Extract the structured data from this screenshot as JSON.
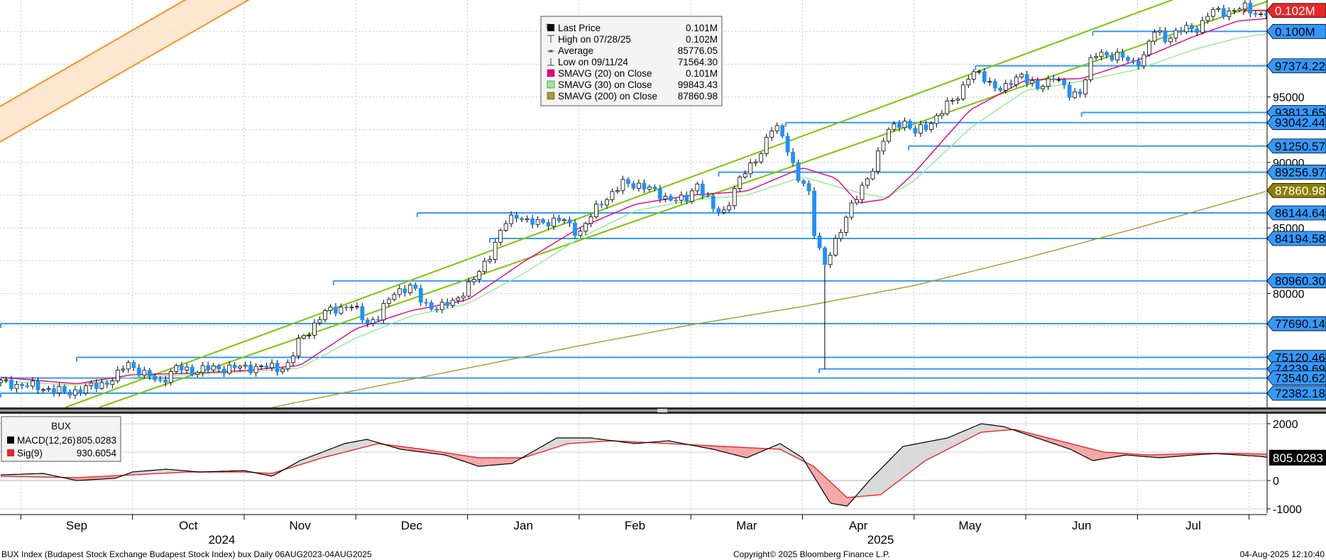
{
  "chart_data": [
    {
      "type": "candlestick",
      "title": "",
      "y_scale": "linear",
      "ylim": [
        71300,
        102400
      ],
      "y_ticks": [
        80000,
        85000,
        90000,
        95000
      ],
      "y_tick_labels": [
        "80000",
        "85000",
        "90000",
        "95000"
      ],
      "x_months": [
        "Sep",
        "Oct",
        "Nov",
        "Dec",
        "Jan",
        "Feb",
        "Mar",
        "Apr",
        "May",
        "Jun",
        "Jul"
      ],
      "x_years": [
        "2024",
        "2025"
      ],
      "grid": true,
      "legend": {
        "placement": "top-center",
        "entries": [
          {
            "label": "Last Price",
            "value": "0.101M",
            "color": "#000000"
          },
          {
            "label": "High on 07/28/25",
            "value": "0.102M",
            "color": "#000000"
          },
          {
            "label": "Average",
            "value": "85776.05",
            "color": "#000000"
          },
          {
            "label": "Low on 09/11/24",
            "value": "71564.30",
            "color": "#000000"
          },
          {
            "label": "SMAVG (20)  on Close",
            "value": "0.101M",
            "color": "#e6007e"
          },
          {
            "label": "SMAVG (30)  on Close",
            "value": "99843.43",
            "color": "#90ee90"
          },
          {
            "label": "SMAVG (200)  on Close",
            "value": "87860.98",
            "color": "#a89a2a"
          }
        ]
      },
      "price_tags": [
        {
          "text": "0.102M",
          "value": 101600,
          "bg": "#e8262a",
          "fg": "#ffffff"
        },
        {
          "text": "0.100M",
          "value": 100000,
          "bg": "#3399ff",
          "fg": "#000000"
        },
        {
          "text": "97374.22",
          "value": 97374.22,
          "bg": "#3399ff",
          "fg": "#000000"
        },
        {
          "text": "93813.65",
          "value": 93813.65,
          "bg": "#3399ff",
          "fg": "#000000"
        },
        {
          "text": "93042.44",
          "value": 93042.44,
          "bg": "#3399ff",
          "fg": "#000000"
        },
        {
          "text": "91250.57",
          "value": 91250.57,
          "bg": "#3399ff",
          "fg": "#000000"
        },
        {
          "text": "89256.97",
          "value": 89256.97,
          "bg": "#3399ff",
          "fg": "#000000"
        },
        {
          "text": "87860.98",
          "value": 87860.98,
          "bg": "#8b8000",
          "fg": "#ffffff"
        },
        {
          "text": "86144.64",
          "value": 86144.64,
          "bg": "#3399ff",
          "fg": "#000000"
        },
        {
          "text": "84194.58",
          "value": 84194.58,
          "bg": "#3399ff",
          "fg": "#000000"
        },
        {
          "text": "80960.30",
          "value": 80960.3,
          "bg": "#3399ff",
          "fg": "#000000"
        },
        {
          "text": "77690.14",
          "value": 77690.14,
          "bg": "#3399ff",
          "fg": "#000000"
        },
        {
          "text": "75120.46",
          "value": 75120.46,
          "bg": "#3399ff",
          "fg": "#000000"
        },
        {
          "text": "74239.69",
          "value": 74239.69,
          "bg": "#3399ff",
          "fg": "#000000"
        },
        {
          "text": "73540.62",
          "value": 73540.62,
          "bg": "#3399ff",
          "fg": "#000000"
        },
        {
          "text": "72382.18",
          "value": 72382.18,
          "bg": "#3399ff",
          "fg": "#000000"
        }
      ],
      "horizontal_levels": [
        {
          "value": 101600,
          "from_month": 10.45,
          "color": "#e8262a"
        },
        {
          "value": 100000,
          "from_month": 9.1,
          "color": "#3399ff"
        },
        {
          "value": 97374.22,
          "from_month": 8.05,
          "color": "#3399ff"
        },
        {
          "value": 93813.65,
          "from_month": 9.0,
          "color": "#3399ff"
        },
        {
          "value": 93042.44,
          "from_month": 6.35,
          "color": "#3399ff"
        },
        {
          "value": 91250.57,
          "from_month": 7.45,
          "color": "#3399ff"
        },
        {
          "value": 89256.97,
          "from_month": 5.75,
          "color": "#3399ff"
        },
        {
          "value": 86144.64,
          "from_month": 3.05,
          "color": "#3399ff"
        },
        {
          "value": 84194.58,
          "from_month": 3.7,
          "color": "#3399ff"
        },
        {
          "value": 80960.3,
          "from_month": 2.3,
          "color": "#3399ff"
        },
        {
          "value": 77690.14,
          "from_month": -0.68,
          "color": "#3399ff"
        },
        {
          "value": 75120.46,
          "from_month": 0.0,
          "color": "#3399ff"
        },
        {
          "value": 74239.69,
          "from_month": 6.65,
          "color": "#3399ff"
        },
        {
          "value": 73540.62,
          "from_month": -0.68,
          "color": "#3399ff"
        },
        {
          "value": 72382.18,
          "from_month": -0.68,
          "color": "#3399ff"
        }
      ],
      "trend_channel": [
        {
          "from": [
            -0.1,
            71300
          ],
          "to": [
            10.0,
            103000
          ],
          "color": "#7dc400"
        },
        {
          "from": [
            0.2,
            71300
          ],
          "to": [
            10.9,
            103000
          ],
          "color": "#7dc400"
        }
      ],
      "close_anchors": [
        [
          -0.68,
          73200
        ],
        [
          -0.3,
          72800
        ],
        [
          -0.1,
          72400
        ],
        [
          0.15,
          72900
        ],
        [
          0.35,
          73500
        ],
        [
          0.45,
          74800
        ],
        [
          0.6,
          73800
        ],
        [
          0.75,
          73300
        ],
        [
          0.9,
          74300
        ],
        [
          1.05,
          74100
        ],
        [
          1.25,
          74300
        ],
        [
          1.4,
          74300
        ],
        [
          1.6,
          74400
        ],
        [
          1.8,
          74300
        ],
        [
          1.9,
          74600
        ],
        [
          2.0,
          76500
        ],
        [
          2.1,
          77300
        ],
        [
          2.2,
          78400
        ],
        [
          2.3,
          78800
        ],
        [
          2.45,
          79100
        ],
        [
          2.6,
          77800
        ],
        [
          2.7,
          78200
        ],
        [
          2.85,
          80200
        ],
        [
          3.0,
          80500
        ],
        [
          3.1,
          79300
        ],
        [
          3.25,
          78800
        ],
        [
          3.4,
          79600
        ],
        [
          3.55,
          80900
        ],
        [
          3.7,
          83000
        ],
        [
          3.85,
          85500
        ],
        [
          3.95,
          86100
        ],
        [
          4.05,
          85300
        ],
        [
          4.2,
          85500
        ],
        [
          4.35,
          85600
        ],
        [
          4.5,
          84600
        ],
        [
          4.7,
          87000
        ],
        [
          4.9,
          88400
        ],
        [
          5.05,
          88300
        ],
        [
          5.2,
          87600
        ],
        [
          5.3,
          87300
        ],
        [
          5.45,
          87000
        ],
        [
          5.55,
          88500
        ],
        [
          5.7,
          86400
        ],
        [
          5.8,
          86300
        ],
        [
          5.9,
          88000
        ],
        [
          6.0,
          89500
        ],
        [
          6.15,
          91000
        ],
        [
          6.25,
          93000
        ],
        [
          6.35,
          91700
        ],
        [
          6.45,
          88600
        ],
        [
          6.55,
          88200
        ],
        [
          6.6,
          85000
        ],
        [
          6.7,
          82000
        ],
        [
          6.8,
          84000
        ],
        [
          6.9,
          86200
        ],
        [
          7.0,
          87400
        ],
        [
          7.1,
          89100
        ],
        [
          7.25,
          92200
        ],
        [
          7.4,
          93300
        ],
        [
          7.5,
          92200
        ],
        [
          7.6,
          92700
        ],
        [
          7.75,
          93900
        ],
        [
          7.9,
          95200
        ],
        [
          8.0,
          96800
        ],
        [
          8.1,
          96600
        ],
        [
          8.3,
          95400
        ],
        [
          8.45,
          96900
        ],
        [
          8.6,
          95500
        ],
        [
          8.75,
          96700
        ],
        [
          8.9,
          95000
        ],
        [
          9.0,
          95600
        ],
        [
          9.1,
          98100
        ],
        [
          9.2,
          98300
        ],
        [
          9.35,
          98100
        ],
        [
          9.45,
          97500
        ],
        [
          9.55,
          98000
        ],
        [
          9.65,
          100000
        ],
        [
          9.75,
          99500
        ],
        [
          9.9,
          100100
        ],
        [
          10.05,
          100300
        ],
        [
          10.15,
          101500
        ],
        [
          10.3,
          101500
        ],
        [
          10.45,
          101800
        ],
        [
          10.6,
          101300
        ],
        [
          10.68,
          101500
        ]
      ],
      "sma20_anchors": [
        [
          -0.68,
          73600
        ],
        [
          0.0,
          73100
        ],
        [
          0.5,
          73800
        ],
        [
          1.0,
          73900
        ],
        [
          1.5,
          74100
        ],
        [
          2.0,
          74500
        ],
        [
          2.5,
          77300
        ],
        [
          3.0,
          78700
        ],
        [
          3.5,
          79500
        ],
        [
          4.0,
          82400
        ],
        [
          4.5,
          85000
        ],
        [
          5.0,
          86800
        ],
        [
          5.5,
          87500
        ],
        [
          6.0,
          87800
        ],
        [
          6.5,
          89600
        ],
        [
          6.8,
          88800
        ],
        [
          7.0,
          86900
        ],
        [
          7.25,
          87200
        ],
        [
          7.5,
          89200
        ],
        [
          8.0,
          94000
        ],
        [
          8.5,
          96300
        ],
        [
          9.0,
          96400
        ],
        [
          9.5,
          97800
        ],
        [
          10.0,
          99600
        ],
        [
          10.4,
          100800
        ],
        [
          10.68,
          101000
        ]
      ],
      "sma30_anchors": [
        [
          -0.68,
          73300
        ],
        [
          0.0,
          73000
        ],
        [
          0.5,
          73600
        ],
        [
          1.0,
          73800
        ],
        [
          1.5,
          74000
        ],
        [
          2.0,
          74300
        ],
        [
          2.5,
          76600
        ],
        [
          3.0,
          78300
        ],
        [
          3.5,
          79200
        ],
        [
          4.0,
          81500
        ],
        [
          4.5,
          84200
        ],
        [
          5.0,
          86300
        ],
        [
          5.5,
          87100
        ],
        [
          6.0,
          87500
        ],
        [
          6.5,
          88900
        ],
        [
          7.0,
          87700
        ],
        [
          7.25,
          87300
        ],
        [
          7.5,
          88600
        ],
        [
          8.0,
          92600
        ],
        [
          8.5,
          95500
        ],
        [
          9.0,
          96200
        ],
        [
          9.5,
          97100
        ],
        [
          10.0,
          98600
        ],
        [
          10.4,
          99500
        ],
        [
          10.68,
          99843
        ]
      ],
      "sma200_anchors": [
        [
          1.75,
          71300
        ],
        [
          2.5,
          72600
        ],
        [
          3.5,
          74300
        ],
        [
          4.5,
          76000
        ],
        [
          5.5,
          77600
        ],
        [
          6.5,
          79000
        ],
        [
          7.5,
          80600
        ],
        [
          8.5,
          82700
        ],
        [
          9.5,
          85000
        ],
        [
          10.68,
          87861
        ]
      ],
      "low_spike": {
        "at_month": 6.7,
        "low": 74239.69
      }
    },
    {
      "type": "line",
      "title": "BUX",
      "ylim": [
        -1150,
        2350
      ],
      "y_ticks": [
        -1000,
        0,
        1000,
        2000
      ],
      "y_tick_labels": [
        "-1000",
        "0",
        "1000",
        "2000"
      ],
      "last_value_label": "805.0283",
      "legend": {
        "placement": "top-left",
        "entries": [
          {
            "label": "MACD(12,26)",
            "value": "805.0283",
            "color": "#000000"
          },
          {
            "label": "Sig(9)",
            "value": "930.6054",
            "color": "#e8262a"
          }
        ]
      },
      "series": [
        {
          "name": "MACD(12,26)",
          "color": "#000000",
          "points": [
            [
              -0.68,
              200
            ],
            [
              -0.3,
              250
            ],
            [
              0.0,
              0
            ],
            [
              0.35,
              80
            ],
            [
              0.5,
              300
            ],
            [
              0.8,
              400
            ],
            [
              1.1,
              300
            ],
            [
              1.5,
              350
            ],
            [
              1.75,
              150
            ],
            [
              2.0,
              700
            ],
            [
              2.4,
              1300
            ],
            [
              2.6,
              1450
            ],
            [
              2.9,
              1100
            ],
            [
              3.3,
              900
            ],
            [
              3.6,
              500
            ],
            [
              3.9,
              600
            ],
            [
              4.3,
              1500
            ],
            [
              4.6,
              1500
            ],
            [
              5.0,
              1300
            ],
            [
              5.3,
              1400
            ],
            [
              5.7,
              1100
            ],
            [
              6.0,
              800
            ],
            [
              6.3,
              1300
            ],
            [
              6.5,
              800
            ],
            [
              6.75,
              -800
            ],
            [
              6.9,
              -900
            ],
            [
              7.1,
              0
            ],
            [
              7.4,
              1200
            ],
            [
              7.8,
              1500
            ],
            [
              8.1,
              2000
            ],
            [
              8.3,
              1900
            ],
            [
              8.6,
              1500
            ],
            [
              8.9,
              1100
            ],
            [
              9.1,
              700
            ],
            [
              9.4,
              900
            ],
            [
              9.7,
              800
            ],
            [
              10.0,
              900
            ],
            [
              10.2,
              950
            ],
            [
              10.4,
              900
            ],
            [
              10.6,
              850
            ],
            [
              10.68,
              805
            ]
          ]
        },
        {
          "name": "Sig(9)",
          "color": "#e8262a",
          "points": [
            [
              -0.68,
              150
            ],
            [
              0.0,
              100
            ],
            [
              0.5,
              200
            ],
            [
              1.0,
              300
            ],
            [
              1.5,
              300
            ],
            [
              1.75,
              250
            ],
            [
              2.2,
              800
            ],
            [
              2.7,
              1300
            ],
            [
              3.1,
              1100
            ],
            [
              3.6,
              800
            ],
            [
              4.0,
              800
            ],
            [
              4.4,
              1300
            ],
            [
              4.8,
              1400
            ],
            [
              5.3,
              1300
            ],
            [
              5.8,
              1200
            ],
            [
              6.3,
              1100
            ],
            [
              6.6,
              500
            ],
            [
              6.9,
              -600
            ],
            [
              7.2,
              -500
            ],
            [
              7.6,
              700
            ],
            [
              8.1,
              1700
            ],
            [
              8.4,
              1800
            ],
            [
              8.8,
              1400
            ],
            [
              9.2,
              1000
            ],
            [
              9.6,
              900
            ],
            [
              10.0,
              950
            ],
            [
              10.4,
              950
            ],
            [
              10.68,
              930
            ]
          ]
        }
      ]
    }
  ],
  "footer": {
    "left": "BUX Index (Budapest Stock Exchange Budapest Stock Index) bux  Daily 06AUG2023-04AUG2025",
    "center": "Copyright© 2025 Bloomberg Finance L.P.",
    "right": "04-Aug-2025 12:10:40"
  },
  "colors": {
    "up_candle": "#ffffff",
    "down_candle": "#1e90ff",
    "support_line": "#3399ff",
    "trend_line": "#7dc400",
    "orange_band": "#f7941d"
  }
}
